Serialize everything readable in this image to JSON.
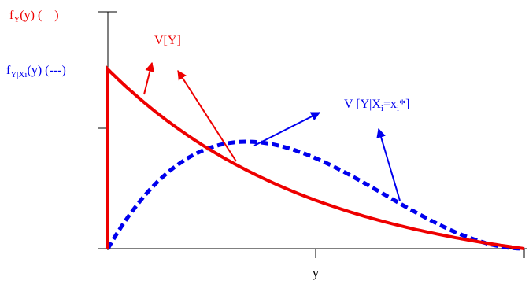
{
  "legend": {
    "red": {
      "f": "f",
      "sub": "Y",
      "rest": "(y) (__)"
    },
    "blue": {
      "f": "f",
      "sub": "Y|Xi",
      "rest": "(y) (---)"
    }
  },
  "annotations": {
    "total_variance": "V[Y]",
    "conditional_variance": {
      "p1": "V [Y|X",
      "s1": "i",
      "p2": "=x",
      "s2": "i",
      "p3": "*]"
    }
  },
  "x_axis_label": "y"
}
